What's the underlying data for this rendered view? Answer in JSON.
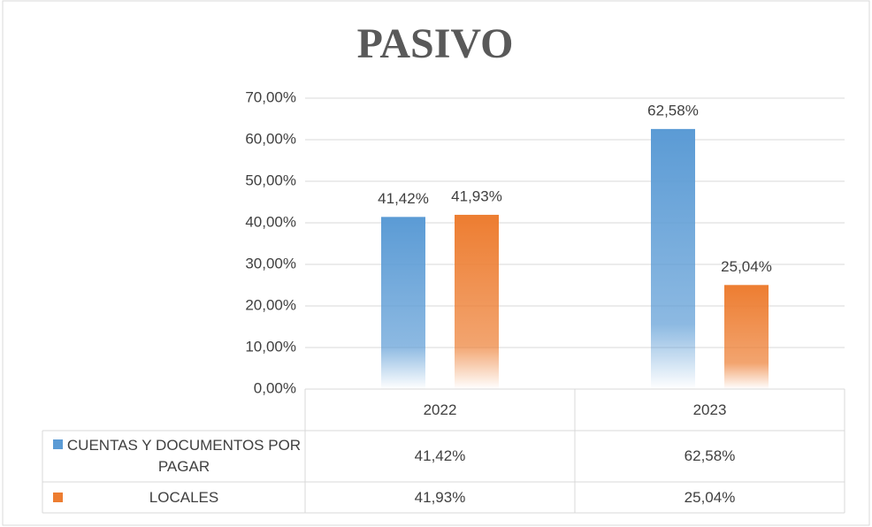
{
  "chart_data": {
    "type": "bar",
    "title": "PASIVO",
    "categories": [
      "2022",
      "2023"
    ],
    "series": [
      {
        "name": "CUENTAS Y DOCUMENTOS POR PAGAR",
        "color": "#5b9bd5",
        "values": [
          41.42,
          62.58
        ],
        "value_labels": [
          "41,42%",
          "62,58%"
        ]
      },
      {
        "name": "LOCALES",
        "color": "#ed7d31",
        "values": [
          41.93,
          25.04
        ],
        "value_labels": [
          "41,93%",
          "25,04%"
        ]
      }
    ],
    "ylim": [
      0,
      70
    ],
    "yticks": [
      {
        "value": 0,
        "label": "0,00%"
      },
      {
        "value": 10,
        "label": "10,00%"
      },
      {
        "value": 20,
        "label": "20,00%"
      },
      {
        "value": 30,
        "label": "30,00%"
      },
      {
        "value": 40,
        "label": "40,00%"
      },
      {
        "value": 50,
        "label": "50,00%"
      },
      {
        "value": 60,
        "label": "60,00%"
      },
      {
        "value": 70,
        "label": "70,00%"
      }
    ],
    "grid": true,
    "data_table": true
  }
}
